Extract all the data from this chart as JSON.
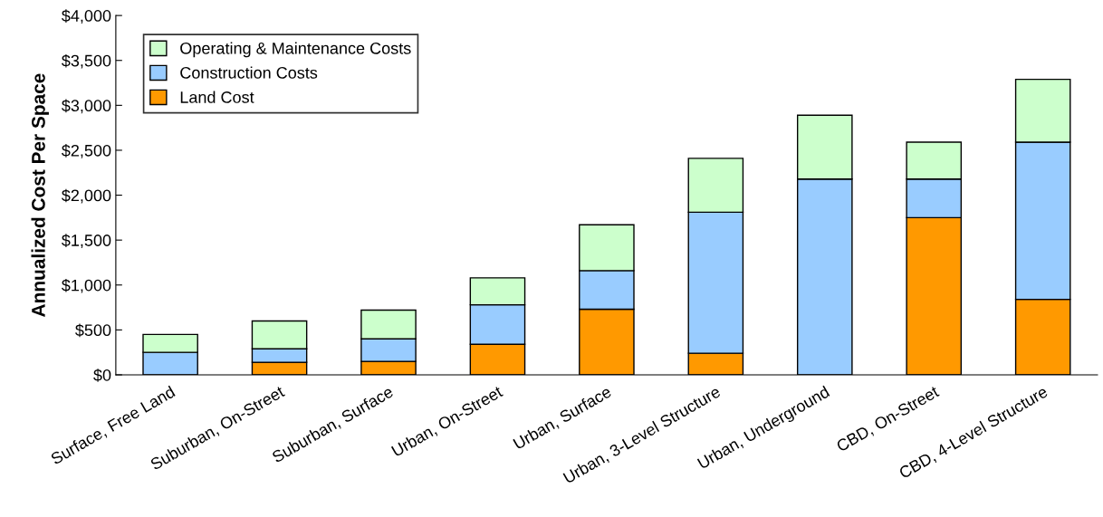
{
  "chart_data": {
    "type": "bar",
    "stacked": true,
    "ylabel": "Annualized Cost Per Space",
    "categories": [
      "Surface, Free Land",
      "Suburban, On-Street",
      "Suburban, Surface",
      "Urban, On-Street",
      "Urban, Surface",
      "Urban, 3-Level Structure",
      "Urban, Underground",
      "CBD, On-Street",
      "CBD, 4-Level Structure"
    ],
    "series": [
      {
        "name": "Land Cost",
        "color": "#ff9900",
        "values": [
          0,
          140,
          150,
          340,
          730,
          240,
          0,
          1750,
          840
        ]
      },
      {
        "name": "Construction Costs",
        "color": "#99ccff",
        "values": [
          250,
          150,
          250,
          440,
          430,
          1570,
          2180,
          430,
          1750
        ]
      },
      {
        "name": "Operating & Maintenance Costs",
        "color": "#ccffcc",
        "values": [
          200,
          310,
          320,
          300,
          510,
          600,
          710,
          410,
          700
        ]
      }
    ],
    "ylim": [
      0,
      4000
    ],
    "yticks": [
      {
        "value": 0,
        "label": "$0"
      },
      {
        "value": 500,
        "label": "$500"
      },
      {
        "value": 1000,
        "label": "$1,000"
      },
      {
        "value": 1500,
        "label": "$1,500"
      },
      {
        "value": 2000,
        "label": "$2,000"
      },
      {
        "value": 2500,
        "label": "$2,500"
      },
      {
        "value": 3000,
        "label": "$3,000"
      },
      {
        "value": 3500,
        "label": "$3,500"
      },
      {
        "value": 4000,
        "label": "$4,000"
      }
    ],
    "grid": false,
    "legend": "top left"
  }
}
